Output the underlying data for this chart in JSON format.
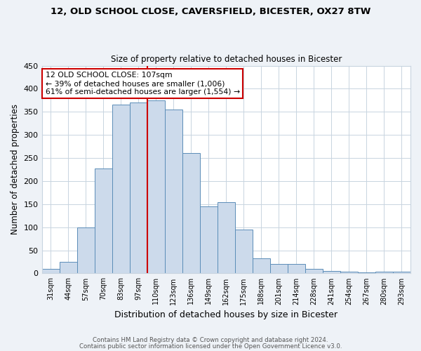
{
  "title1": "12, OLD SCHOOL CLOSE, CAVERSFIELD, BICESTER, OX27 8TW",
  "title2": "Size of property relative to detached houses in Bicester",
  "xlabel": "Distribution of detached houses by size in Bicester",
  "ylabel": "Number of detached properties",
  "categories": [
    "31sqm",
    "44sqm",
    "57sqm",
    "70sqm",
    "83sqm",
    "97sqm",
    "110sqm",
    "123sqm",
    "136sqm",
    "149sqm",
    "162sqm",
    "175sqm",
    "188sqm",
    "201sqm",
    "214sqm",
    "228sqm",
    "241sqm",
    "254sqm",
    "267sqm",
    "280sqm",
    "293sqm"
  ],
  "bar_heights": [
    10,
    25,
    100,
    228,
    365,
    370,
    375,
    355,
    260,
    145,
    155,
    95,
    32,
    20,
    20,
    10,
    5,
    4,
    2,
    4,
    3
  ],
  "bar_color": "#ccdaeb",
  "bar_edge_color": "#5b8db8",
  "vline_x": 5.5,
  "vline_color": "#cc0000",
  "annotation_text": "12 OLD SCHOOL CLOSE: 107sqm\n← 39% of detached houses are smaller (1,006)\n61% of semi-detached houses are larger (1,554) →",
  "annotation_box_color": "#ffffff",
  "annotation_box_edge": "#cc0000",
  "ylim": [
    0,
    450
  ],
  "yticks": [
    0,
    50,
    100,
    150,
    200,
    250,
    300,
    350,
    400,
    450
  ],
  "footer1": "Contains HM Land Registry data © Crown copyright and database right 2024.",
  "footer2": "Contains public sector information licensed under the Open Government Licence v3.0.",
  "bg_color": "#eef2f7",
  "plot_bg_color": "#ffffff",
  "grid_color": "#c8d4e0"
}
